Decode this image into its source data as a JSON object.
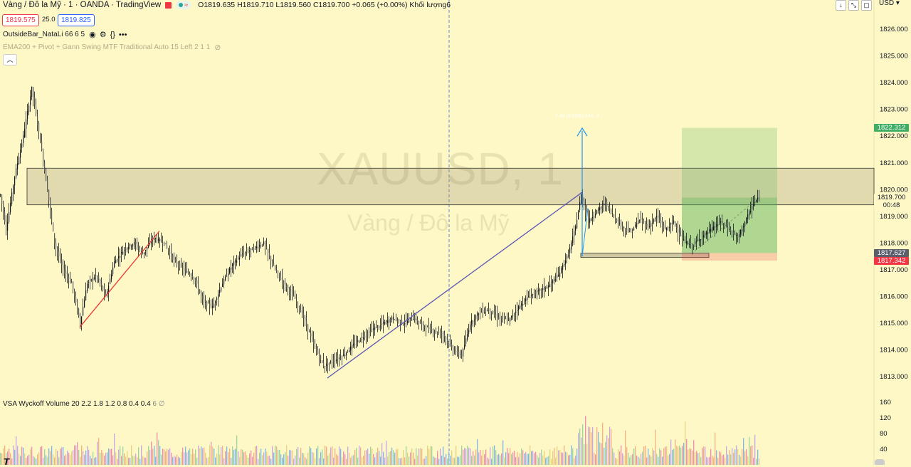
{
  "header": {
    "symbol": "Vàng / Đô la Mỹ · 1 · OANDA · TradingView",
    "o_label": "O",
    "o_value": "1819.635",
    "h_label": "H",
    "h_value": "1819.710",
    "l_label": "L",
    "l_value": "1819.560",
    "c_label": "C",
    "c_value": "1819.700",
    "change": "+0.065 (+0.00%)",
    "volume_label": "Khối lượng",
    "volume_value": "6"
  },
  "price_boxes": {
    "bid": "1819.575",
    "spread": "25.0",
    "ask": "1819.825"
  },
  "indicators": {
    "outside_bar": "OutsideBar_NataLi 66 6 5",
    "ema": "EMA200 + Pivot + Gann Swing MTF Traditional Auto 15 Left 2 1 1",
    "vsa": "VSA Wyckoff Volume 20 2.2 1.8 1.2 0.8 0.4 0.4",
    "vsa_extra": "6 ∅"
  },
  "currency": "USD",
  "watermark": {
    "symbol": "XAUUSD, 1",
    "name": "Vàng / Đô la Mỹ"
  },
  "projection_label": "1.44 (0.08%) 144, 4",
  "colors": {
    "background": "#fdf8c6",
    "up_candle": "#131722",
    "zone_fill": "#c8c19a",
    "target": "#3dae64",
    "stop": "#f23645",
    "line_blue": "#5d55b5",
    "line_red": "#e53935",
    "arrow": "#2196f3"
  },
  "icons": [
    "eye-icon",
    "settings-icon",
    "code-icon",
    "more-icon",
    "hidden-eye-icon",
    "chevron-up-icon",
    "arrow-down-icon",
    "collapse-icon",
    "close-icon"
  ],
  "chart_data": {
    "type": "candlestick",
    "title": "XAUUSD, 1",
    "y_axis": {
      "min": 1812.5,
      "max": 1826.5,
      "ticks": [
        1813,
        1814,
        1815,
        1816,
        1817,
        1818,
        1819,
        1820,
        1821,
        1822,
        1823,
        1824,
        1825,
        1826
      ],
      "tick_format": "0.000"
    },
    "price_tags": [
      {
        "label": "1822.312",
        "value": 1822.312,
        "kind": "target"
      },
      {
        "label": "1819.700",
        "value": 1819.7,
        "kind": "last",
        "sub": "00:48"
      },
      {
        "label": "1817.627",
        "value": 1817.627,
        "kind": "entry"
      },
      {
        "label": "1817.342",
        "value": 1817.342,
        "kind": "stop"
      }
    ],
    "price_path": [
      [
        0,
        1819.8
      ],
      [
        8,
        1818.5
      ],
      [
        20,
        1820.5
      ],
      [
        32,
        1822.0
      ],
      [
        44,
        1823.8
      ],
      [
        56,
        1821.8
      ],
      [
        66,
        1820.0
      ],
      [
        76,
        1818.0
      ],
      [
        88,
        1817.0
      ],
      [
        100,
        1816.5
      ],
      [
        112,
        1815.0
      ],
      [
        122,
        1816.5
      ],
      [
        135,
        1816.8
      ],
      [
        148,
        1816.0
      ],
      [
        160,
        1817.3
      ],
      [
        175,
        1817.8
      ],
      [
        188,
        1818.0
      ],
      [
        200,
        1817.6
      ],
      [
        215,
        1818.2
      ],
      [
        230,
        1818.0
      ],
      [
        245,
        1817.3
      ],
      [
        258,
        1817.0
      ],
      [
        272,
        1816.7
      ],
      [
        285,
        1815.8
      ],
      [
        298,
        1815.6
      ],
      [
        312,
        1816.5
      ],
      [
        326,
        1817.2
      ],
      [
        340,
        1817.6
      ],
      [
        356,
        1817.8
      ],
      [
        370,
        1818.0
      ],
      [
        384,
        1817.1
      ],
      [
        398,
        1816.5
      ],
      [
        412,
        1816.0
      ],
      [
        426,
        1815.2
      ],
      [
        440,
        1814.2
      ],
      [
        454,
        1813.4
      ],
      [
        468,
        1813.6
      ],
      [
        482,
        1813.8
      ],
      [
        496,
        1814.2
      ],
      [
        510,
        1814.5
      ],
      [
        524,
        1814.8
      ],
      [
        538,
        1815.0
      ],
      [
        552,
        1815.2
      ],
      [
        566,
        1815.0
      ],
      [
        580,
        1815.2
      ],
      [
        594,
        1814.9
      ],
      [
        608,
        1814.7
      ],
      [
        622,
        1814.6
      ],
      [
        636,
        1814.0
      ],
      [
        648,
        1813.8
      ],
      [
        660,
        1815.0
      ],
      [
        672,
        1815.4
      ],
      [
        686,
        1815.5
      ],
      [
        700,
        1815.2
      ],
      [
        714,
        1815.1
      ],
      [
        728,
        1815.6
      ],
      [
        742,
        1816.0
      ],
      [
        756,
        1816.2
      ],
      [
        770,
        1816.4
      ],
      [
        784,
        1816.8
      ],
      [
        798,
        1817.6
      ],
      [
        808,
        1818.6
      ],
      [
        816,
        1819.8
      ],
      [
        826,
        1818.8
      ],
      [
        838,
        1819.2
      ],
      [
        850,
        1819.5
      ],
      [
        862,
        1819.0
      ],
      [
        874,
        1818.6
      ],
      [
        886,
        1818.4
      ],
      [
        898,
        1818.9
      ],
      [
        910,
        1818.6
      ],
      [
        922,
        1819.0
      ],
      [
        934,
        1818.5
      ],
      [
        946,
        1818.8
      ],
      [
        958,
        1818.1
      ],
      [
        972,
        1817.9
      ],
      [
        984,
        1818.2
      ],
      [
        998,
        1818.5
      ],
      [
        1012,
        1818.8
      ],
      [
        1024,
        1818.5
      ],
      [
        1036,
        1818.2
      ],
      [
        1048,
        1818.9
      ],
      [
        1058,
        1819.5
      ],
      [
        1066,
        1819.7
      ]
    ],
    "zones": [
      {
        "name": "resistance",
        "x0": 38,
        "x1": 1228,
        "y_top": 1820.8,
        "y_bottom": 1819.43
      },
      {
        "name": "consolidation",
        "x0": 816,
        "x1": 996,
        "y_top": 1817.62,
        "y_bottom": 1817.46
      },
      {
        "name": "long-target",
        "x0": 958,
        "x1": 1092,
        "y_top": 1822.312,
        "y_bottom": 1817.627
      },
      {
        "name": "long-stop",
        "x0": 958,
        "x1": 1092,
        "y_top": 1817.627,
        "y_bottom": 1817.342
      }
    ],
    "trend_lines": [
      {
        "name": "red-trend",
        "x0": 112,
        "v0": 1814.85,
        "x1": 224,
        "v1": 1818.45
      },
      {
        "name": "blue-trend",
        "x0": 460,
        "v0": 1812.95,
        "x1": 818,
        "v1": 1819.9
      }
    ],
    "vertical_marker_x": 631,
    "volume_axis": {
      "max": 165,
      "ticks": [
        40,
        80,
        120,
        160
      ]
    }
  }
}
